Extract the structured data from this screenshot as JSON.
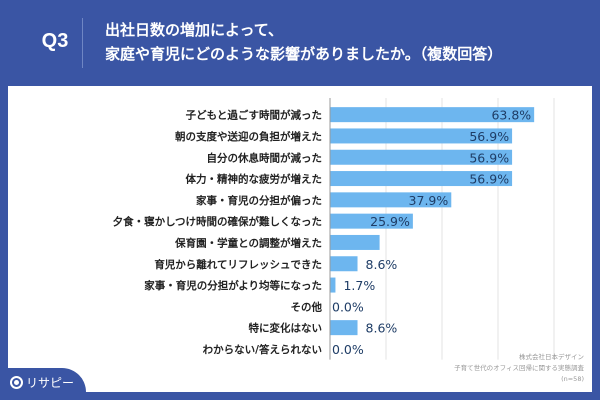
{
  "header": {
    "question_no": "Q3",
    "title_line1": "出社日数の増加によって、",
    "title_line2": "家庭や育児にどのような影響がありましたか。（複数回答）"
  },
  "logo": {
    "text": "リサピー"
  },
  "source": {
    "line1": "株式会社日本デザイン",
    "line2": "子育て世代のオフィス回帰に関する実態調査",
    "line3": "(n=58)"
  },
  "chart_data": {
    "type": "bar",
    "orientation": "horizontal",
    "categories": [
      "子どもと過ごす時間が減った",
      "朝の支度や送迎の負担が増えた",
      "自分の休息時間が減った",
      "体力・精神的な疲労が増えた",
      "家事・育児の分担が偏った",
      "夕食・寝かしつけ時間の確保が難しくなった",
      "保育園・学童との調整が増えた",
      "育児から離れてリフレッシュできた",
      "家事・育児の分担がより均等になった",
      "その他",
      "特に変化はない",
      "わからない/答えられない"
    ],
    "values": [
      63.8,
      56.9,
      56.9,
      56.9,
      37.9,
      25.9,
      15.5,
      8.6,
      1.7,
      0.0,
      8.6,
      0.0
    ],
    "data_labels": [
      "63.8%",
      "56.9%",
      "56.9%",
      "56.9%",
      "37.9%",
      "25.9%",
      null,
      "8.6%",
      "1.7%",
      "0.0%",
      "8.6%",
      "0.0%"
    ],
    "xlim": [
      0,
      70
    ],
    "grid": true,
    "unit": "%",
    "bar_color": "#6db6ef",
    "label_color": "#1f3d66"
  }
}
